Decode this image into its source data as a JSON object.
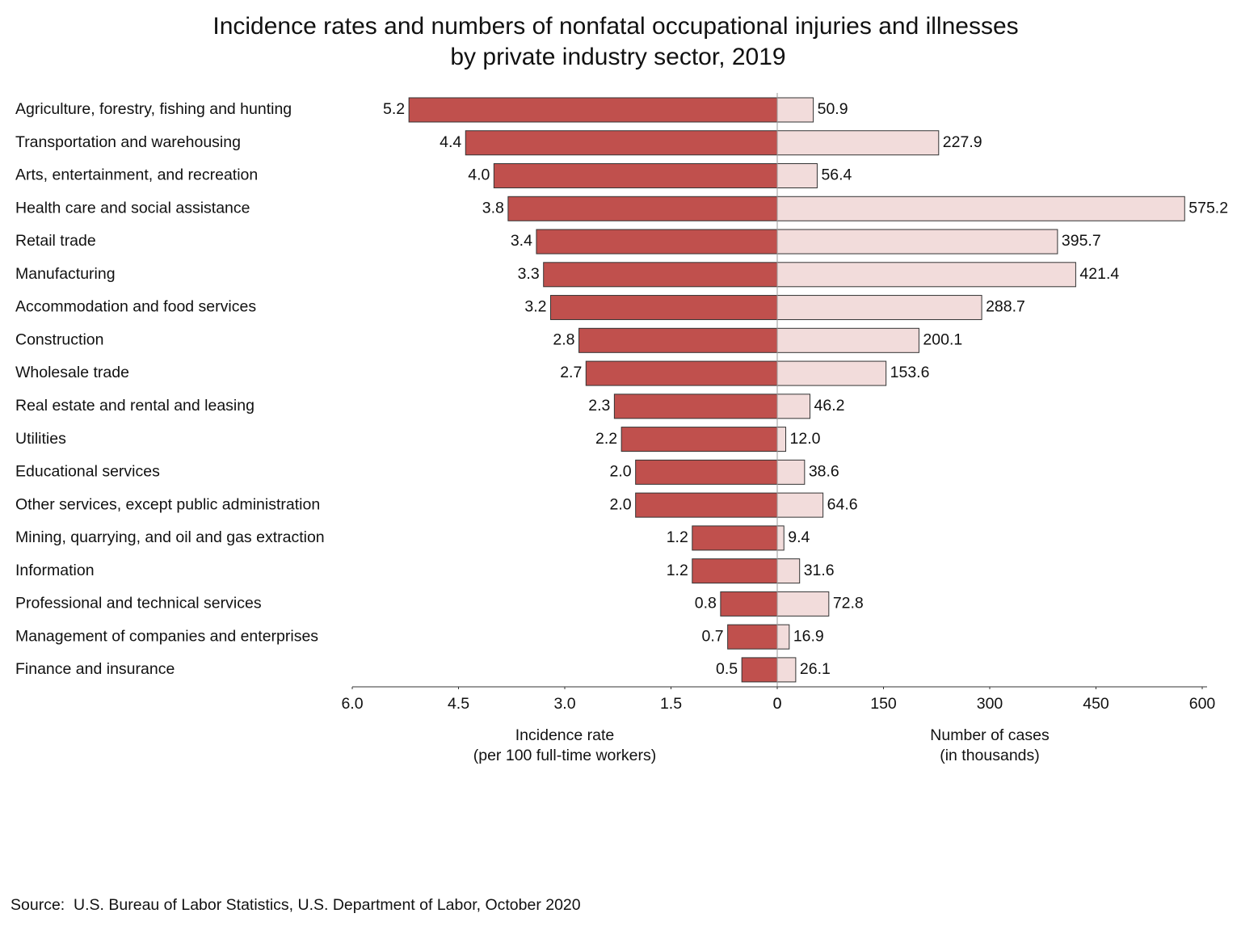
{
  "chart_data": {
    "type": "butterfly-bar",
    "title": [
      "Incidence rates and numbers of nonfatal occupational injuries and illnesses",
      "by private industry sector, 2019"
    ],
    "categories": [
      "Agriculture, forestry, fishing and hunting",
      "Transportation and warehousing",
      "Arts, entertainment, and recreation",
      "Health care and social assistance",
      "Retail trade",
      "Manufacturing",
      "Accommodation and food services",
      "Construction",
      "Wholesale trade",
      "Real estate and rental and leasing",
      "Utilities",
      "Educational services",
      "Other services, except public administration",
      "Mining, quarrying, and oil and gas extraction",
      "Information",
      "Professional and technical services",
      "Management of companies and enterprises",
      "Finance and insurance"
    ],
    "series": [
      {
        "side": "left",
        "color": "#c0504d",
        "axis_label": [
          "Incidence rate",
          "(per 100 full-time workers)"
        ],
        "xlim": [
          6,
          0
        ],
        "xticks": [
          {
            "value": 6,
            "label": "6.0"
          },
          4.5,
          {
            "value": 3,
            "label": "3.0"
          },
          1.5,
          0
        ],
        "values": [
          5.2,
          4.4,
          4.0,
          3.8,
          3.4,
          3.3,
          3.2,
          2.8,
          2.7,
          2.3,
          2.2,
          2.0,
          2.0,
          1.2,
          1.2,
          0.8,
          0.7,
          0.5
        ],
        "value_labels": [
          "5.2",
          "4.4",
          "4.0",
          "3.8",
          "3.4",
          "3.3",
          "3.2",
          "2.8",
          "2.7",
          "2.3",
          "2.2",
          "2.0",
          "2.0",
          "1.2",
          "1.2",
          "0.8",
          "0.7",
          "0.5"
        ]
      },
      {
        "side": "right",
        "color": "#f2dcdb",
        "axis_label": [
          "Number of cases",
          "(in thousands)"
        ],
        "xlim": [
          0,
          600
        ],
        "xticks": [
          0,
          150,
          300,
          450,
          600
        ],
        "values": [
          50.9,
          227.9,
          56.4,
          575.2,
          395.7,
          421.4,
          288.7,
          200.1,
          153.6,
          46.2,
          12.0,
          38.6,
          64.6,
          9.4,
          31.6,
          72.8,
          16.9,
          26.1
        ],
        "value_labels": [
          "50.9",
          "227.9",
          "56.4",
          "575.2",
          "395.7",
          "421.4",
          "288.7",
          "200.1",
          "153.6",
          "46.2",
          "12.0",
          "38.6",
          "64.6",
          "9.4",
          "31.6",
          "72.8",
          "16.9",
          "26.1"
        ]
      }
    ],
    "source": "Source:  U.S. Bureau of Labor Statistics, U.S. Department of Labor, October 2020"
  }
}
